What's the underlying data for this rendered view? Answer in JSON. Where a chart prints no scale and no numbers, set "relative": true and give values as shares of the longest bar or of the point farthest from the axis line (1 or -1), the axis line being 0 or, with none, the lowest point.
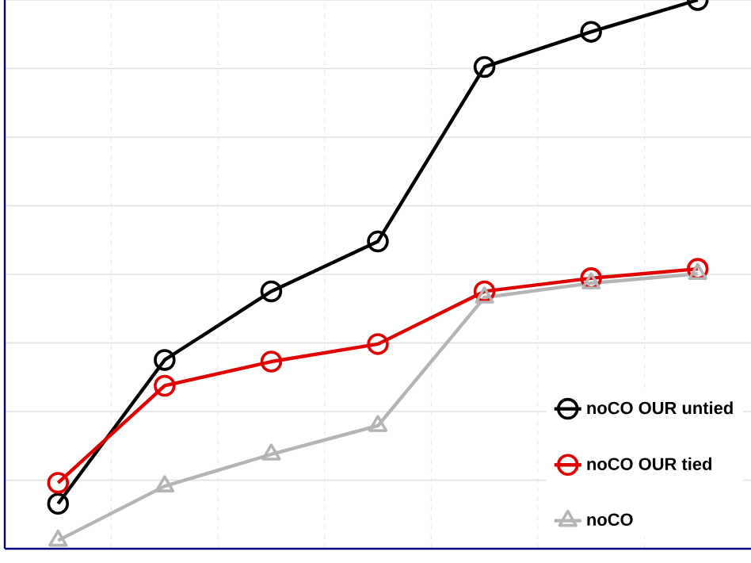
{
  "chart_data": {
    "type": "line",
    "relative": true,
    "categories": [
      null,
      null,
      null,
      null,
      null,
      null,
      null
    ],
    "series": [
      {
        "name": "noCO OUR untied",
        "color": "#000000",
        "marker": "circle",
        "values": [
          0.082,
          0.344,
          0.469,
          0.56,
          0.878,
          0.942,
          1
        ]
      },
      {
        "name": "noCO OUR tied",
        "color": "#e00000",
        "marker": "circle",
        "values": [
          0.12,
          0.297,
          0.341,
          0.373,
          0.469,
          0.493,
          0.51
        ]
      },
      {
        "name": "noCO",
        "color": "#b4b4b4",
        "marker": "triangle",
        "values": [
          0.015,
          0.114,
          0.172,
          0.224,
          0.458,
          0.484,
          0.501
        ]
      }
    ],
    "grid": true,
    "legend": "bottom right",
    "line_style": "solid"
  }
}
